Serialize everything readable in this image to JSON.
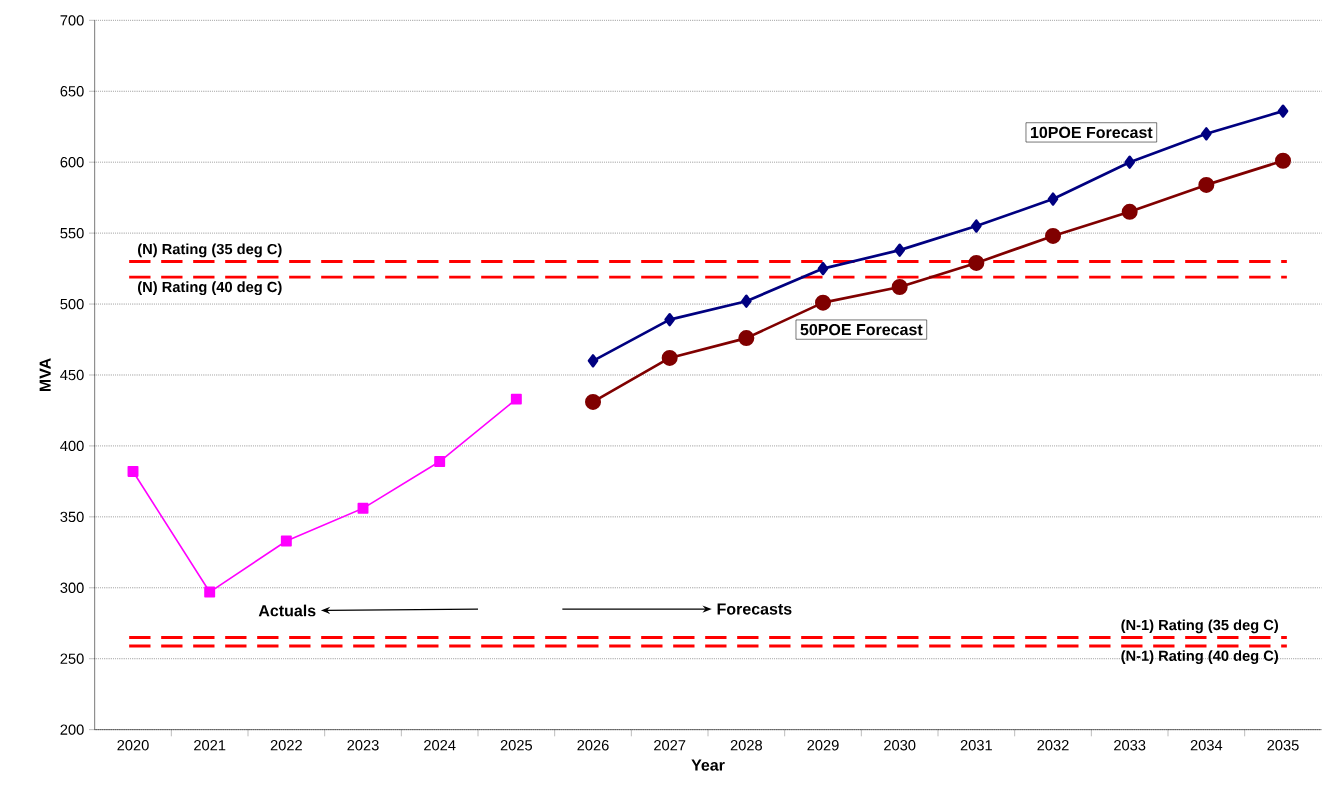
{
  "chart_data": {
    "type": "line",
    "xlabel": "Year",
    "ylabel": "MVA",
    "categories": [
      "2020",
      "2021",
      "2022",
      "2023",
      "2024",
      "2025",
      "2026",
      "2027",
      "2028",
      "2029",
      "2030",
      "2031",
      "2032",
      "2033",
      "2034",
      "2035"
    ],
    "series": [
      {
        "color": "#ff00ff",
        "marker": "square",
        "values": [
          382,
          297,
          333,
          356,
          389,
          433,
          null,
          null,
          null,
          null,
          null,
          null,
          null,
          null,
          null,
          null
        ]
      },
      {
        "name": "10POE Forecast",
        "color": "#000080",
        "marker": "diamond",
        "values": [
          null,
          null,
          null,
          null,
          null,
          null,
          460,
          489,
          502,
          525,
          538,
          555,
          574,
          600,
          620,
          636
        ]
      },
      {
        "name": "50POE Forecast",
        "color": "#800000",
        "marker": "circle",
        "values": [
          null,
          null,
          null,
          null,
          null,
          null,
          431,
          462,
          476,
          501,
          512,
          529,
          548,
          565,
          584,
          601
        ]
      }
    ],
    "ref_lines": [
      {
        "axis": "y",
        "value": 530,
        "label": "(N) Rating (35 deg C)",
        "color": "#ff0000",
        "line_style": "dashed"
      },
      {
        "axis": "y",
        "value": 519,
        "label": "(N) Rating (40 deg C)",
        "color": "#ff0000",
        "line_style": "dashed"
      },
      {
        "axis": "y",
        "value": 265,
        "label": "(N-1) Rating (35 deg C)",
        "color": "#ff0000",
        "line_style": "dashed"
      },
      {
        "axis": "y",
        "value": 259,
        "label": "(N-1) Rating (40 deg C)",
        "color": "#ff0000",
        "line_style": "dashed"
      }
    ],
    "annotations": [
      "Actuals",
      "Forecasts"
    ],
    "ylim": [
      200,
      700
    ],
    "yticks": [
      200,
      250,
      300,
      350,
      400,
      450,
      500,
      550,
      600,
      650,
      700
    ],
    "grid": "y"
  }
}
